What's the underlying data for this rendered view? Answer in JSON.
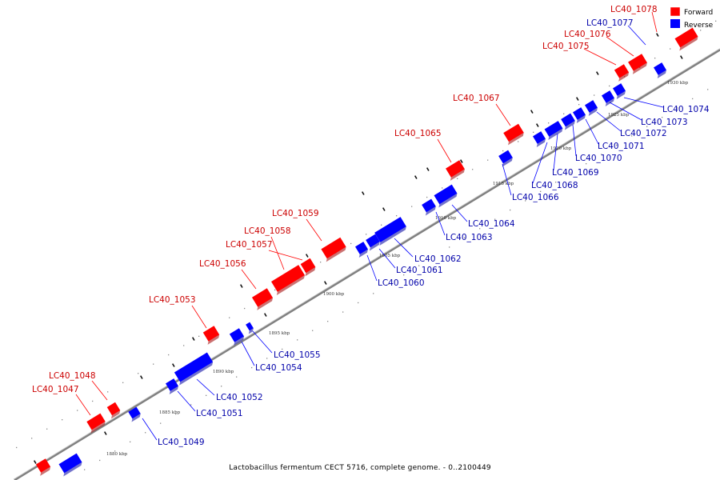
{
  "colors": {
    "forward": "#ff0000",
    "reverse": "#0000ff",
    "label_forward": "#cc0000",
    "label_reverse": "#0000aa",
    "axis": "#999999"
  },
  "legend": {
    "forward": "Forward",
    "reverse": "Reverse"
  },
  "caption": "Lactobacillus fermentum CECT 5716, complete genome. - 0..2100449",
  "scale_labels": [
    "1880 kbp",
    "1885 kbp",
    "1890 kbp",
    "1895 kbp",
    "1900 kbp",
    "1905 kbp",
    "1910 kbp",
    "1915 kbp",
    "1920 kbp",
    "1925 kbp",
    "1930 kbp"
  ],
  "genes": [
    {
      "id": "LC40_1047",
      "strand": "forward"
    },
    {
      "id": "LC40_1048",
      "strand": "forward"
    },
    {
      "id": "LC40_1049",
      "strand": "reverse"
    },
    {
      "id": "LC40_1051",
      "strand": "reverse"
    },
    {
      "id": "LC40_1052",
      "strand": "reverse"
    },
    {
      "id": "LC40_1053",
      "strand": "forward"
    },
    {
      "id": "LC40_1054",
      "strand": "reverse"
    },
    {
      "id": "LC40_1055",
      "strand": "reverse"
    },
    {
      "id": "LC40_1056",
      "strand": "forward"
    },
    {
      "id": "LC40_1057",
      "strand": "forward"
    },
    {
      "id": "LC40_1058",
      "strand": "forward"
    },
    {
      "id": "LC40_1059",
      "strand": "forward"
    },
    {
      "id": "LC40_1060",
      "strand": "reverse"
    },
    {
      "id": "LC40_1061",
      "strand": "reverse"
    },
    {
      "id": "LC40_1062",
      "strand": "reverse"
    },
    {
      "id": "LC40_1063",
      "strand": "reverse"
    },
    {
      "id": "LC40_1064",
      "strand": "reverse"
    },
    {
      "id": "LC40_1065",
      "strand": "forward"
    },
    {
      "id": "LC40_1066",
      "strand": "reverse"
    },
    {
      "id": "LC40_1067",
      "strand": "forward"
    },
    {
      "id": "LC40_1068",
      "strand": "reverse"
    },
    {
      "id": "LC40_1069",
      "strand": "reverse"
    },
    {
      "id": "LC40_1070",
      "strand": "reverse"
    },
    {
      "id": "LC40_1071",
      "strand": "reverse"
    },
    {
      "id": "LC40_1072",
      "strand": "reverse"
    },
    {
      "id": "LC40_1073",
      "strand": "reverse"
    },
    {
      "id": "LC40_1074",
      "strand": "reverse"
    },
    {
      "id": "LC40_1075",
      "strand": "forward"
    },
    {
      "id": "LC40_1076",
      "strand": "forward"
    },
    {
      "id": "LC40_1077",
      "strand": "reverse"
    },
    {
      "id": "LC40_1078",
      "strand": "forward"
    }
  ]
}
